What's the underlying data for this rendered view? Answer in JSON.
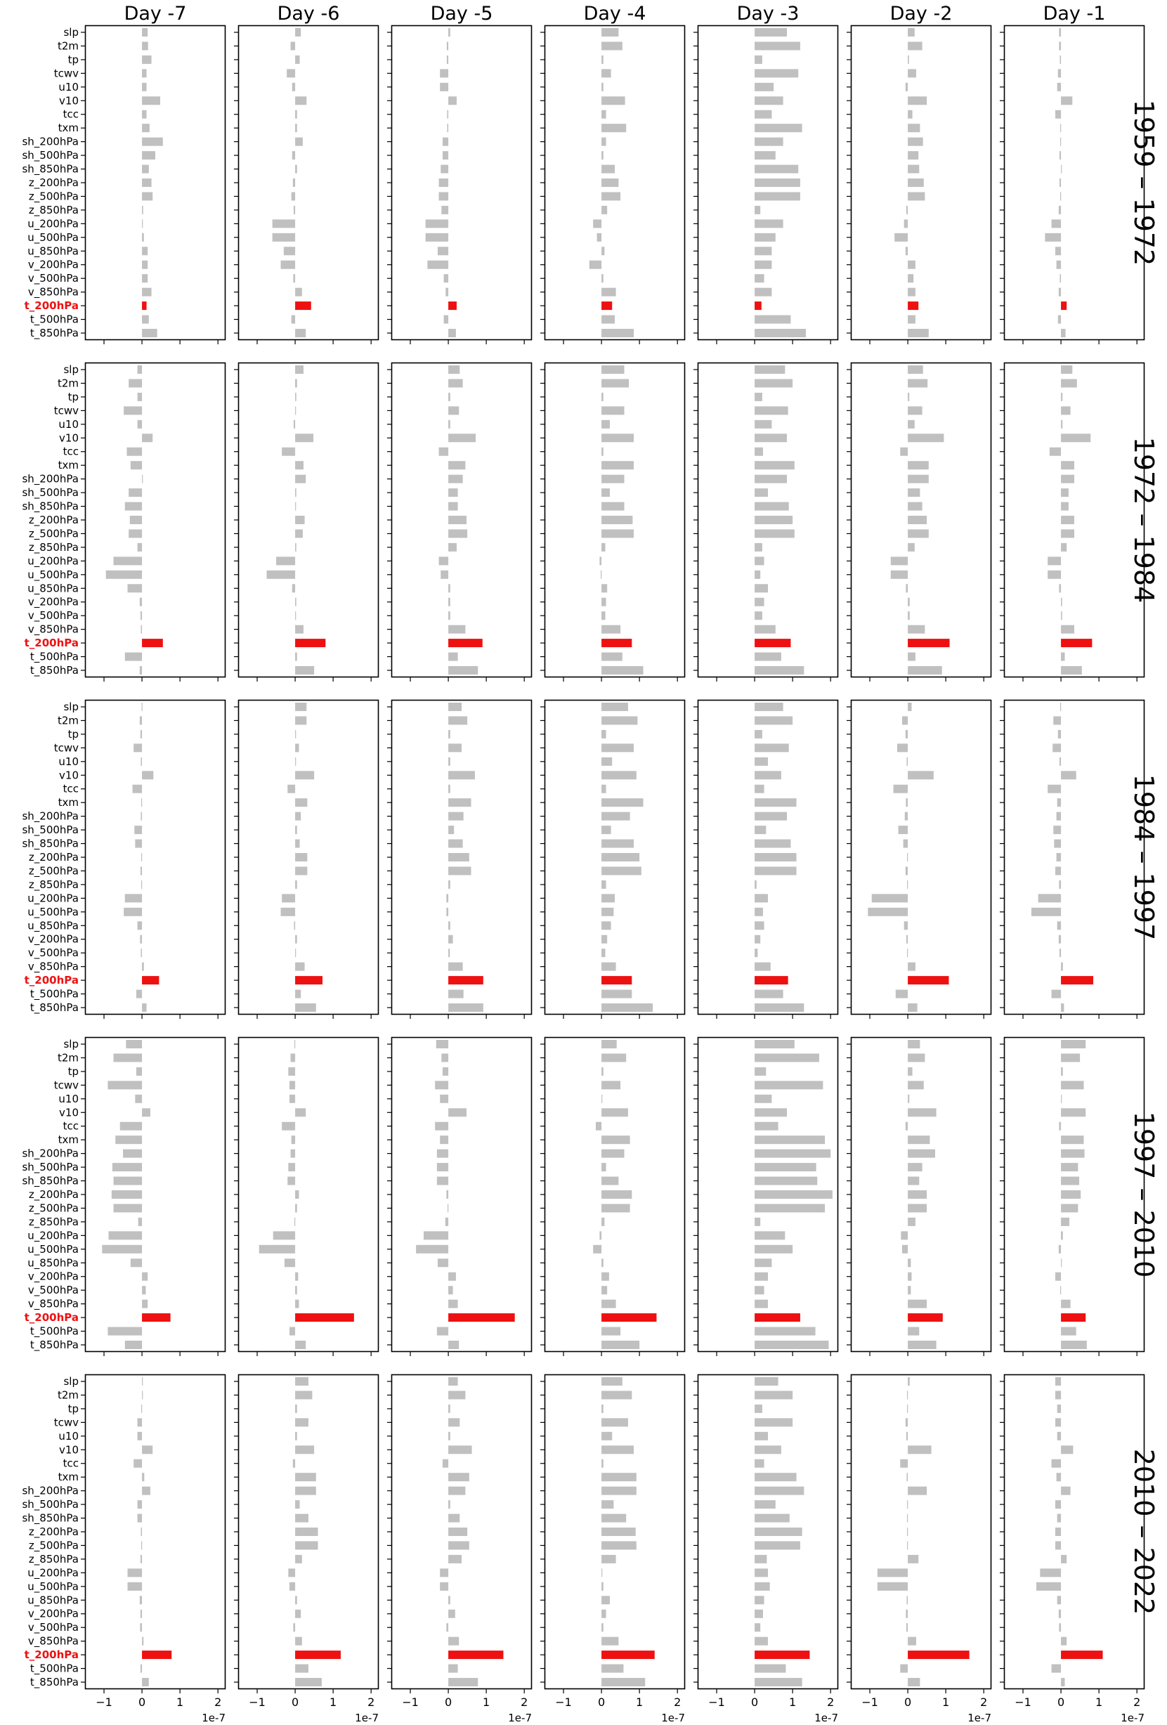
{
  "chart_data": {
    "type": "bar",
    "orientation": "horizontal",
    "title": "",
    "xlabel": "",
    "ylabel": "",
    "column_titles": [
      "Day -7",
      "Day -6",
      "Day -5",
      "Day -4",
      "Day -3",
      "Day -2",
      "Day -1"
    ],
    "row_titles": [
      "1959 – 1972",
      "1972 – 1984",
      "1984 – 1997",
      "1997 – 2010",
      "2010 – 2022"
    ],
    "categories": [
      "slp",
      "t2m",
      "tp",
      "tcwv",
      "u10",
      "v10",
      "tcc",
      "txm",
      "sh_200hPa",
      "sh_500hPa",
      "sh_850hPa",
      "z_200hPa",
      "z_500hPa",
      "z_850hPa",
      "u_200hPa",
      "u_500hPa",
      "u_850hPa",
      "v_200hPa",
      "v_500hPa",
      "v_850hPa",
      "t_200hPa",
      "t_500hPa",
      "t_850hPa"
    ],
    "highlight_category": "t_200hPa",
    "xlim": [
      -1.5,
      2.2
    ],
    "xticks": [
      -1,
      0,
      1,
      2
    ],
    "x_scale_label": "1e-7",
    "colors": {
      "default": "#c0c0c0",
      "highlight": "#ee1111",
      "highlight_label": "#ee1111"
    },
    "grid": false,
    "legend": "none",
    "panels": [
      [
        [
          0.15,
          0.16,
          0.25,
          0.12,
          0.12,
          0.48,
          0.12,
          0.2,
          0.55,
          0.35,
          0.18,
          0.25,
          0.28,
          0.03,
          0.02,
          0.05,
          0.15,
          0.15,
          0.15,
          0.25,
          0.12,
          0.18,
          0.4
        ],
        [
          0.15,
          -0.12,
          0.12,
          -0.22,
          -0.08,
          0.3,
          0.05,
          0.05,
          0.2,
          -0.08,
          0.05,
          -0.06,
          -0.1,
          -0.04,
          -0.6,
          -0.6,
          -0.3,
          -0.38,
          -0.05,
          0.18,
          0.42,
          -0.1,
          0.28
        ],
        [
          0.05,
          -0.04,
          -0.04,
          -0.22,
          -0.22,
          0.22,
          -0.03,
          -0.03,
          -0.15,
          -0.15,
          -0.2,
          -0.25,
          -0.25,
          -0.18,
          -0.6,
          -0.6,
          -0.28,
          -0.55,
          -0.12,
          -0.07,
          0.22,
          -0.12,
          0.2
        ],
        [
          0.45,
          0.55,
          0.05,
          0.25,
          0.05,
          0.62,
          0.12,
          0.65,
          0.12,
          0.05,
          0.35,
          0.45,
          0.5,
          0.15,
          -0.22,
          -0.12,
          0.08,
          -0.32,
          0.05,
          0.38,
          0.28,
          0.35,
          0.85
        ],
        [
          0.85,
          1.2,
          0.2,
          1.15,
          0.5,
          0.75,
          0.45,
          1.25,
          0.75,
          0.55,
          1.15,
          1.2,
          1.2,
          0.15,
          0.75,
          0.55,
          0.45,
          0.45,
          0.25,
          0.45,
          0.18,
          0.95,
          1.35
        ],
        [
          0.18,
          0.38,
          0.03,
          0.22,
          -0.06,
          0.5,
          0.12,
          0.32,
          0.4,
          0.28,
          0.3,
          0.42,
          0.45,
          -0.04,
          -0.1,
          -0.35,
          -0.06,
          0.2,
          0.15,
          0.2,
          0.28,
          0.2,
          0.55
        ],
        [
          -0.05,
          -0.05,
          -0.03,
          -0.08,
          -0.1,
          0.3,
          -0.15,
          -0.02,
          -0.02,
          -0.04,
          0.02,
          -0.04,
          -0.02,
          -0.06,
          -0.25,
          -0.42,
          -0.15,
          -0.12,
          -0.03,
          -0.06,
          0.15,
          -0.08,
          0.12
        ]
      ],
      [
        [
          -0.12,
          -0.35,
          -0.12,
          -0.48,
          -0.12,
          0.28,
          -0.4,
          -0.3,
          0.02,
          -0.35,
          -0.45,
          -0.32,
          -0.35,
          -0.12,
          -0.75,
          -0.95,
          -0.38,
          -0.06,
          -0.04,
          -0.03,
          0.55,
          -0.45,
          -0.06
        ],
        [
          0.22,
          0.05,
          0.03,
          0.02,
          -0.04,
          0.48,
          -0.35,
          0.22,
          0.28,
          0.03,
          0.02,
          0.25,
          0.2,
          0.03,
          -0.5,
          -0.75,
          -0.08,
          0.03,
          0.02,
          0.22,
          0.8,
          0.05,
          0.5
        ],
        [
          0.3,
          0.38,
          0.05,
          0.28,
          0.05,
          0.72,
          -0.25,
          0.45,
          0.38,
          0.25,
          0.25,
          0.48,
          0.5,
          0.22,
          -0.25,
          -0.2,
          0.05,
          0.05,
          0.05,
          0.45,
          0.9,
          0.25,
          0.78
        ],
        [
          0.6,
          0.72,
          0.05,
          0.6,
          0.22,
          0.85,
          0.05,
          0.85,
          0.6,
          0.22,
          0.6,
          0.82,
          0.85,
          0.1,
          -0.05,
          -0.02,
          0.15,
          0.12,
          0.1,
          0.5,
          0.8,
          0.55,
          1.1
        ],
        [
          0.8,
          1.0,
          0.2,
          0.88,
          0.45,
          0.85,
          0.22,
          1.05,
          0.85,
          0.35,
          0.9,
          1.0,
          1.05,
          0.2,
          0.25,
          0.15,
          0.35,
          0.25,
          0.2,
          0.55,
          0.95,
          0.7,
          1.3
        ],
        [
          0.4,
          0.52,
          0.04,
          0.38,
          0.18,
          0.95,
          -0.2,
          0.55,
          0.55,
          0.32,
          0.38,
          0.5,
          0.55,
          0.18,
          -0.45,
          -0.45,
          -0.05,
          0.05,
          0.05,
          0.45,
          1.1,
          0.2,
          0.9
        ],
        [
          0.3,
          0.42,
          0.04,
          0.25,
          0.04,
          0.78,
          -0.3,
          0.35,
          0.35,
          0.2,
          0.2,
          0.35,
          0.35,
          0.15,
          -0.35,
          -0.35,
          -0.05,
          0.03,
          0.03,
          0.35,
          0.82,
          0.1,
          0.55
        ]
      ],
      [
        [
          -0.01,
          -0.06,
          -0.04,
          -0.22,
          -0.03,
          0.3,
          -0.25,
          -0.02,
          -0.03,
          -0.2,
          -0.18,
          -0.02,
          -0.04,
          -0.02,
          -0.45,
          -0.48,
          -0.12,
          -0.05,
          -0.03,
          0.05,
          0.45,
          -0.15,
          0.12
        ],
        [
          0.3,
          0.3,
          0.02,
          0.1,
          0.02,
          0.5,
          -0.2,
          0.32,
          0.15,
          0.05,
          0.12,
          0.32,
          0.32,
          0.05,
          -0.35,
          -0.38,
          -0.03,
          0.05,
          0.02,
          0.25,
          0.72,
          0.15,
          0.55
        ],
        [
          0.35,
          0.5,
          0.05,
          0.35,
          0.05,
          0.7,
          0.05,
          0.6,
          0.4,
          0.15,
          0.38,
          0.55,
          0.6,
          0.05,
          -0.05,
          -0.05,
          0.05,
          0.12,
          0.04,
          0.38,
          0.92,
          0.4,
          0.92
        ],
        [
          0.7,
          0.95,
          0.12,
          0.85,
          0.28,
          0.92,
          0.12,
          1.1,
          0.75,
          0.25,
          0.85,
          1.0,
          1.05,
          0.12,
          0.35,
          0.32,
          0.25,
          0.15,
          0.1,
          0.38,
          0.8,
          0.8,
          1.35
        ],
        [
          0.75,
          1.0,
          0.2,
          0.9,
          0.35,
          0.7,
          0.25,
          1.1,
          0.85,
          0.3,
          0.95,
          1.1,
          1.1,
          0.05,
          0.35,
          0.22,
          0.25,
          0.15,
          0.08,
          0.42,
          0.88,
          0.75,
          1.3
        ],
        [
          0.1,
          -0.15,
          -0.06,
          -0.28,
          -0.03,
          0.68,
          -0.38,
          -0.05,
          -0.08,
          -0.25,
          -0.12,
          -0.02,
          -0.06,
          -0.02,
          -0.95,
          -1.05,
          -0.1,
          -0.04,
          -0.02,
          0.2,
          1.08,
          -0.32,
          0.25
        ],
        [
          -0.02,
          -0.2,
          -0.08,
          -0.22,
          -0.04,
          0.4,
          -0.35,
          -0.1,
          -0.12,
          -0.2,
          -0.18,
          -0.12,
          -0.15,
          -0.05,
          -0.6,
          -0.78,
          -0.1,
          -0.06,
          -0.04,
          0.05,
          0.85,
          -0.25,
          0.08
        ]
      ],
      [
        [
          -0.42,
          -0.75,
          -0.15,
          -0.9,
          -0.18,
          0.22,
          -0.58,
          -0.7,
          -0.5,
          -0.78,
          -0.75,
          -0.8,
          -0.75,
          -0.1,
          -0.88,
          -1.05,
          -0.3,
          0.15,
          0.1,
          0.15,
          0.75,
          -0.9,
          -0.45
        ],
        [
          -0.02,
          -0.12,
          -0.18,
          -0.15,
          -0.15,
          0.28,
          -0.35,
          -0.1,
          -0.12,
          -0.18,
          -0.2,
          0.1,
          0.05,
          -0.02,
          -0.58,
          -0.95,
          -0.28,
          0.08,
          0.05,
          0.1,
          1.55,
          -0.15,
          0.28
        ],
        [
          -0.32,
          -0.18,
          -0.15,
          -0.35,
          -0.22,
          0.48,
          -0.35,
          -0.22,
          -0.3,
          -0.3,
          -0.3,
          -0.05,
          -0.02,
          -0.08,
          -0.65,
          -0.85,
          -0.28,
          0.2,
          0.12,
          0.25,
          1.75,
          -0.3,
          0.28
        ],
        [
          0.4,
          0.65,
          0.05,
          0.5,
          0.02,
          0.7,
          -0.15,
          0.75,
          0.6,
          0.12,
          0.45,
          0.8,
          0.75,
          0.08,
          -0.05,
          -0.22,
          0.05,
          0.2,
          0.15,
          0.38,
          1.45,
          0.5,
          1.0
        ],
        [
          1.05,
          1.7,
          0.3,
          1.8,
          0.45,
          0.85,
          0.62,
          1.85,
          2.0,
          1.62,
          1.65,
          2.05,
          1.85,
          0.15,
          0.8,
          1.0,
          0.45,
          0.35,
          0.25,
          0.35,
          1.2,
          1.6,
          1.95
        ],
        [
          0.32,
          0.45,
          0.12,
          0.42,
          0.04,
          0.75,
          -0.06,
          0.58,
          0.72,
          0.38,
          0.3,
          0.5,
          0.5,
          0.2,
          -0.18,
          -0.15,
          0.08,
          0.1,
          0.08,
          0.5,
          0.92,
          0.3,
          0.75
        ],
        [
          0.65,
          0.5,
          0.05,
          0.6,
          0.02,
          0.65,
          -0.05,
          0.6,
          0.62,
          0.45,
          0.48,
          0.52,
          0.45,
          0.22,
          0.05,
          -0.06,
          0.02,
          -0.15,
          -0.02,
          0.25,
          0.65,
          0.4,
          0.68
        ]
      ],
      [
        [
          0.02,
          0.0,
          -0.02,
          -0.12,
          -0.12,
          0.28,
          -0.22,
          0.06,
          0.22,
          -0.12,
          -0.12,
          -0.03,
          -0.02,
          -0.04,
          -0.38,
          -0.38,
          -0.06,
          -0.04,
          -0.05,
          0.04,
          0.78,
          -0.04,
          0.18
        ],
        [
          0.35,
          0.45,
          0.05,
          0.35,
          0.05,
          0.5,
          -0.06,
          0.55,
          0.55,
          0.12,
          0.35,
          0.6,
          0.6,
          0.18,
          -0.18,
          -0.15,
          0.05,
          0.15,
          -0.05,
          0.18,
          1.2,
          0.35,
          0.7
        ],
        [
          0.25,
          0.45,
          0.05,
          0.3,
          0.05,
          0.62,
          -0.15,
          0.55,
          0.45,
          0.05,
          0.3,
          0.5,
          0.55,
          0.35,
          -0.22,
          -0.22,
          0.05,
          0.18,
          -0.05,
          0.28,
          1.45,
          0.25,
          0.78
        ],
        [
          0.55,
          0.8,
          0.05,
          0.7,
          0.28,
          0.85,
          0.05,
          0.92,
          0.92,
          0.32,
          0.65,
          0.9,
          0.92,
          0.38,
          0.02,
          0.05,
          0.22,
          0.12,
          0.05,
          0.45,
          1.4,
          0.58,
          1.15
        ],
        [
          0.62,
          1.0,
          0.2,
          1.0,
          0.35,
          0.7,
          0.25,
          1.1,
          1.3,
          0.55,
          0.92,
          1.25,
          1.2,
          0.32,
          0.35,
          0.4,
          0.25,
          0.22,
          0.15,
          0.35,
          1.45,
          0.82,
          1.25
        ],
        [
          0.05,
          -0.02,
          -0.02,
          -0.06,
          -0.04,
          0.62,
          -0.2,
          -0.03,
          0.5,
          -0.02,
          -0.02,
          -0.02,
          -0.02,
          0.28,
          -0.8,
          -0.8,
          -0.03,
          -0.05,
          -0.04,
          0.22,
          1.62,
          -0.2,
          0.32
        ],
        [
          -0.15,
          -0.15,
          -0.1,
          -0.15,
          -0.1,
          0.32,
          -0.25,
          -0.12,
          0.25,
          -0.15,
          -0.1,
          -0.15,
          -0.15,
          0.15,
          -0.55,
          -0.65,
          -0.1,
          -0.06,
          -0.05,
          0.15,
          1.1,
          -0.25,
          0.1
        ]
      ]
    ]
  }
}
